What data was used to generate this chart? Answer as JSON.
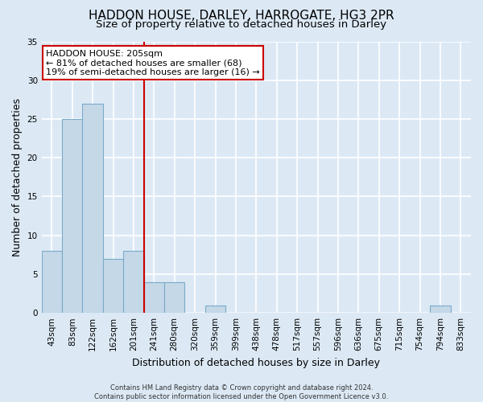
{
  "title": "HADDON HOUSE, DARLEY, HARROGATE, HG3 2PR",
  "subtitle": "Size of property relative to detached houses in Darley",
  "xlabel": "Distribution of detached houses by size in Darley",
  "ylabel": "Number of detached properties",
  "bin_labels": [
    "43sqm",
    "83sqm",
    "122sqm",
    "162sqm",
    "201sqm",
    "241sqm",
    "280sqm",
    "320sqm",
    "359sqm",
    "399sqm",
    "438sqm",
    "478sqm",
    "517sqm",
    "557sqm",
    "596sqm",
    "636sqm",
    "675sqm",
    "715sqm",
    "754sqm",
    "794sqm",
    "833sqm"
  ],
  "bar_values": [
    8,
    25,
    27,
    7,
    8,
    4,
    4,
    0,
    1,
    0,
    0,
    0,
    0,
    0,
    0,
    0,
    0,
    0,
    0,
    1,
    0
  ],
  "bar_color": "#c5d8e8",
  "bar_edgecolor": "#7aaac8",
  "vline_x": 4.5,
  "vline_color": "#cc0000",
  "annotation_text": "HADDON HOUSE: 205sqm\n← 81% of detached houses are smaller (68)\n19% of semi-detached houses are larger (16) →",
  "annotation_box_edgecolor": "#cc0000",
  "annotation_box_facecolor": "#ffffff",
  "ylim": [
    0,
    35
  ],
  "yticks": [
    0,
    5,
    10,
    15,
    20,
    25,
    30,
    35
  ],
  "footer_text": "Contains HM Land Registry data © Crown copyright and database right 2024.\nContains public sector information licensed under the Open Government Licence v3.0.",
  "background_color": "#dce9f5",
  "grid_color": "#ffffff",
  "title_fontsize": 11,
  "subtitle_fontsize": 9.5,
  "axis_label_fontsize": 9,
  "tick_fontsize": 7.5,
  "annotation_fontsize": 8,
  "footer_fontsize": 6
}
